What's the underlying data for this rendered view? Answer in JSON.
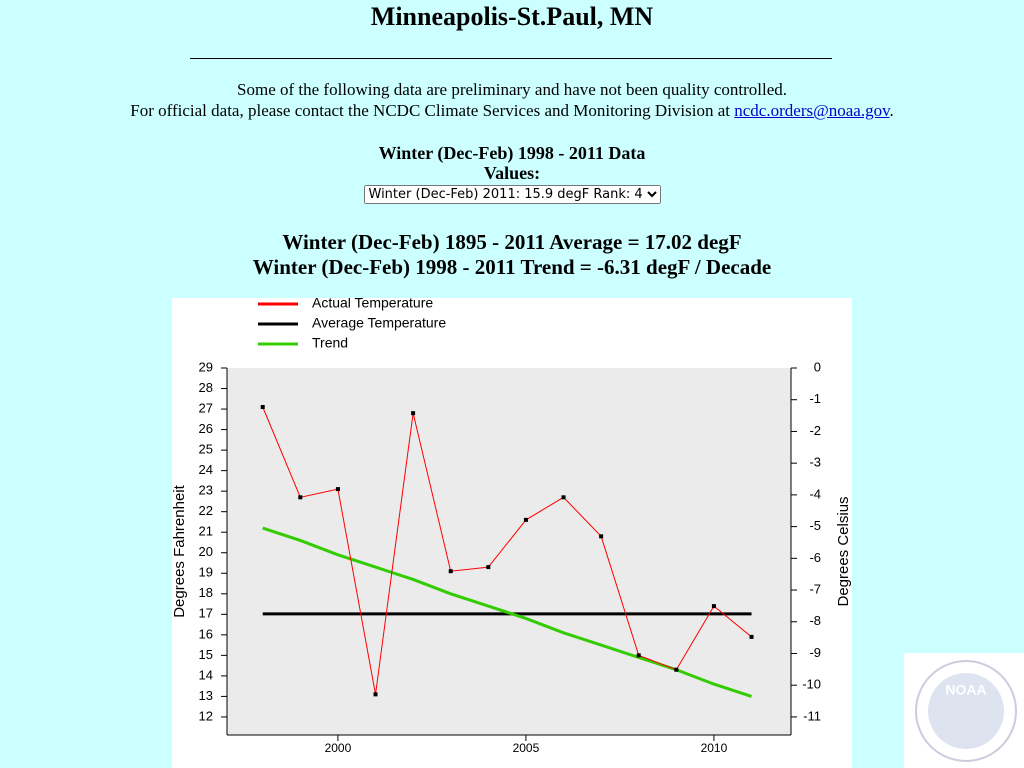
{
  "header": {
    "title": "Minneapolis-St.Paul, MN"
  },
  "notice": {
    "line1": "Some of the following data are preliminary and have not been quality controlled.",
    "line2": "For official data, please contact the NCDC Climate Services and Monitoring Division at",
    "link": "ncdc.orders@noaa.gov",
    "end": "."
  },
  "selection": {
    "heading": "Winter (Dec-Feb) 1998 - 2011 Data",
    "label": "Values:",
    "option": "Winter (Dec-Feb) 2011: 15.9 degF  Rank: 4"
  },
  "summary": {
    "average": "Winter (Dec-Feb) 1895 - 2011 Average = 17.02 degF",
    "trend": "Winter (Dec-Feb) 1998 - 2011 Trend = -6.31 degF / Decade"
  },
  "logo": {
    "label": "NOAA"
  },
  "chart_data": {
    "type": "line",
    "x": [
      1998,
      1999,
      2000,
      2001,
      2002,
      2003,
      2004,
      2005,
      2006,
      2007,
      2008,
      2009,
      2010,
      2011
    ],
    "series": [
      {
        "name": "Actual Temperature",
        "color": "#ff0000",
        "values": [
          27.1,
          22.7,
          23.1,
          13.1,
          26.8,
          19.1,
          19.3,
          21.6,
          22.7,
          20.8,
          15.0,
          14.3,
          17.4,
          15.9
        ]
      },
      {
        "name": "Average Temperature",
        "color": "#000000",
        "values": [
          17.02,
          17.02,
          17.02,
          17.02,
          17.02,
          17.02,
          17.02,
          17.02,
          17.02,
          17.02,
          17.02,
          17.02,
          17.02,
          17.02
        ]
      },
      {
        "name": "Trend",
        "color": "#33cc00",
        "values": [
          21.2,
          20.6,
          19.9,
          19.3,
          18.7,
          18.0,
          17.4,
          16.8,
          16.1,
          15.5,
          14.9,
          14.3,
          13.6,
          13.0
        ]
      }
    ],
    "xlim": [
      1997.05,
      2012.05
    ],
    "xticks": [
      2000,
      2005,
      2010
    ],
    "ylim": [
      11.12,
      29
    ],
    "yticks": [
      12,
      13,
      14,
      15,
      16,
      17,
      18,
      19,
      20,
      21,
      22,
      23,
      24,
      25,
      26,
      27,
      28,
      29
    ],
    "y2lim": [
      -11.57,
      0
    ],
    "y2ticks": [
      0,
      -1,
      -2,
      -3,
      -4,
      -5,
      -6,
      -7,
      -8,
      -9,
      -10,
      -11
    ],
    "ylabel": "Degrees Fahrenheit",
    "y2label": "Degrees Celsius",
    "legend": "top-left"
  }
}
